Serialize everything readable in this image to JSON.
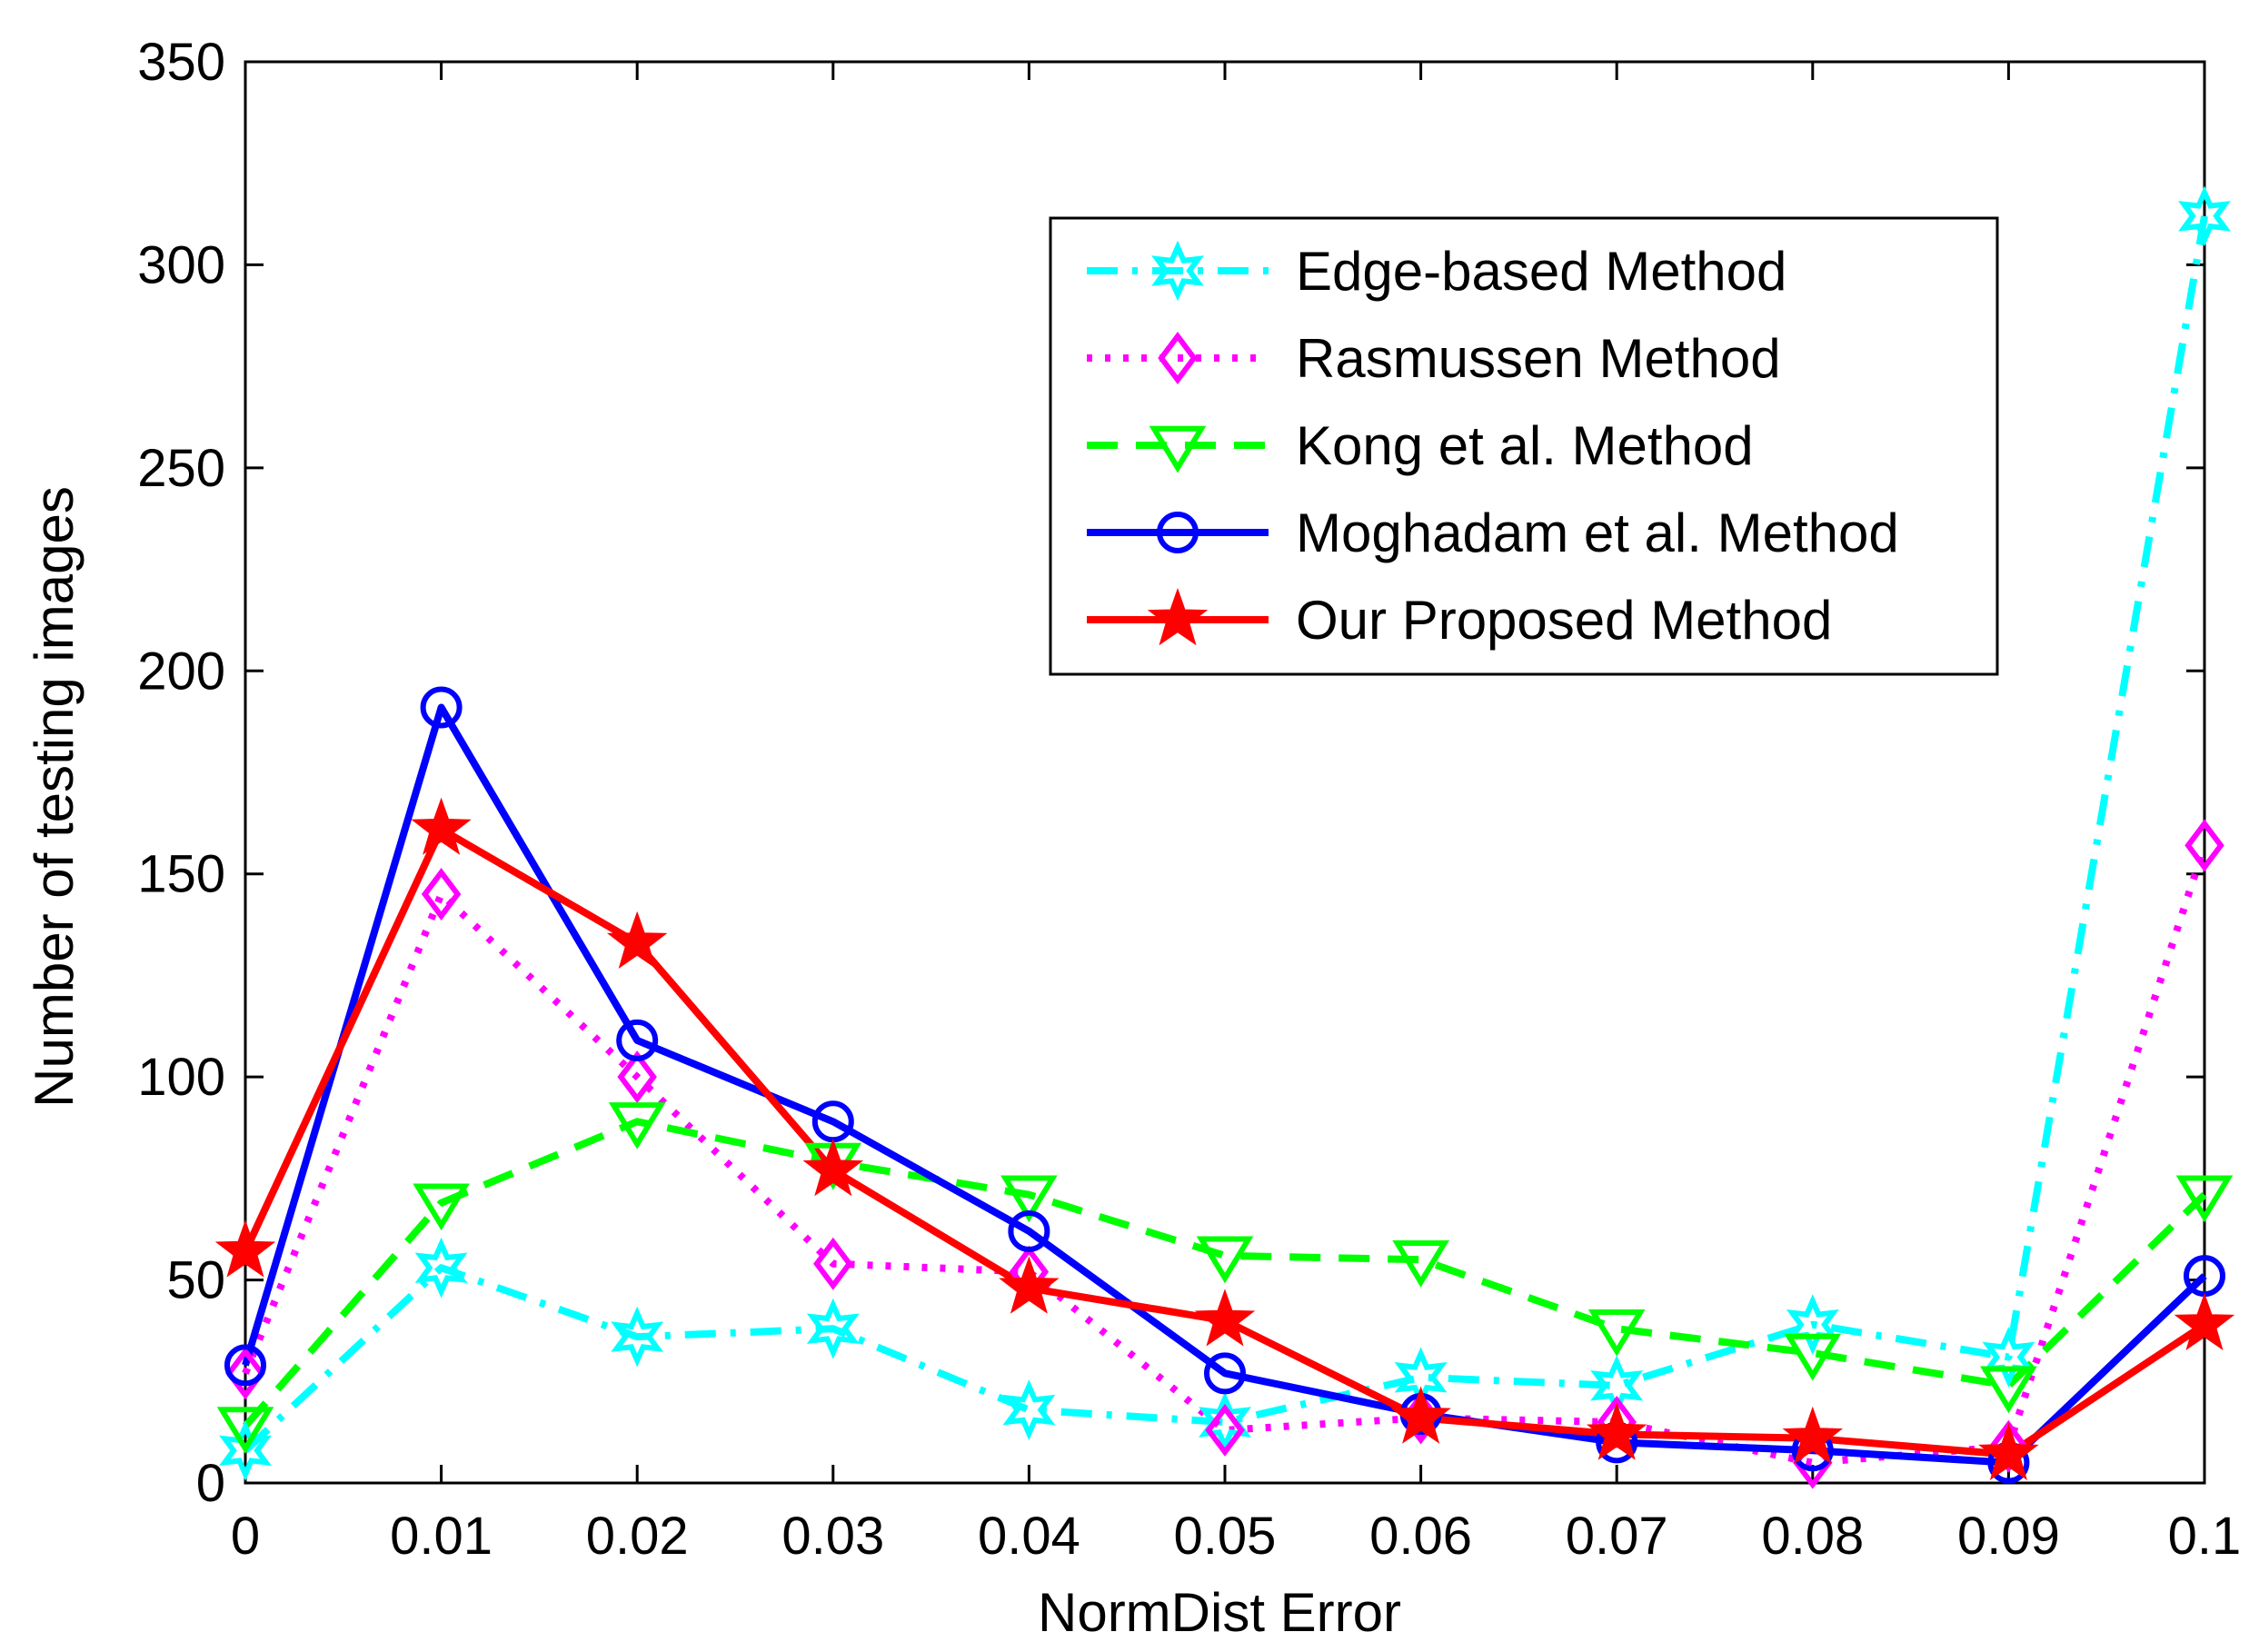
{
  "chart_data": {
    "type": "line",
    "title": "",
    "xlabel": "NormDist Error",
    "ylabel": "Number of testing images",
    "xlim": [
      0,
      0.1
    ],
    "ylim": [
      0,
      350
    ],
    "x": [
      0,
      0.01,
      0.02,
      0.03,
      0.04,
      0.05,
      0.06,
      0.07,
      0.08,
      0.09,
      0.1
    ],
    "x_tick_labels": [
      "0",
      "0.01",
      "0.02",
      "0.03",
      "0.04",
      "0.05",
      "0.06",
      "0.07",
      "0.08",
      "0.09",
      "0.1"
    ],
    "y_ticks": [
      0,
      50,
      100,
      150,
      200,
      250,
      300,
      350
    ],
    "y_tick_labels": [
      "0",
      "50",
      "100",
      "150",
      "200",
      "250",
      "300",
      "350"
    ],
    "grid": false,
    "legend_position": "top-right",
    "series": [
      {
        "name": "Edge-based Method",
        "color": "#00FFFF",
        "dash": "dashdot",
        "marker": "hexagram",
        "values": [
          8,
          53,
          36,
          38,
          18,
          15,
          26,
          24,
          39,
          31,
          312
        ]
      },
      {
        "name": "Rasmussen Method",
        "color": "#FF00FF",
        "dash": "dotted",
        "marker": "diamond",
        "values": [
          27,
          145,
          100,
          54,
          52,
          13,
          16,
          15,
          5,
          9,
          157
        ]
      },
      {
        "name": "Kong et al. Method",
        "color": "#00FF00",
        "dash": "dashed",
        "marker": "triangle-down",
        "values": [
          14,
          69,
          89,
          79,
          71,
          56,
          55,
          38,
          32,
          24,
          71
        ]
      },
      {
        "name": "Moghadam et al. Method",
        "color": "#0000FF",
        "dash": "solid",
        "marker": "circle",
        "values": [
          29,
          191,
          109,
          89,
          62,
          27,
          17,
          10,
          8,
          5,
          51
        ]
      },
      {
        "name": "Our Proposed Method",
        "color": "#FF0000",
        "dash": "solid",
        "marker": "pentagram",
        "values": [
          57,
          161,
          133,
          77,
          48,
          40,
          16,
          12,
          11,
          7,
          39
        ]
      }
    ]
  }
}
